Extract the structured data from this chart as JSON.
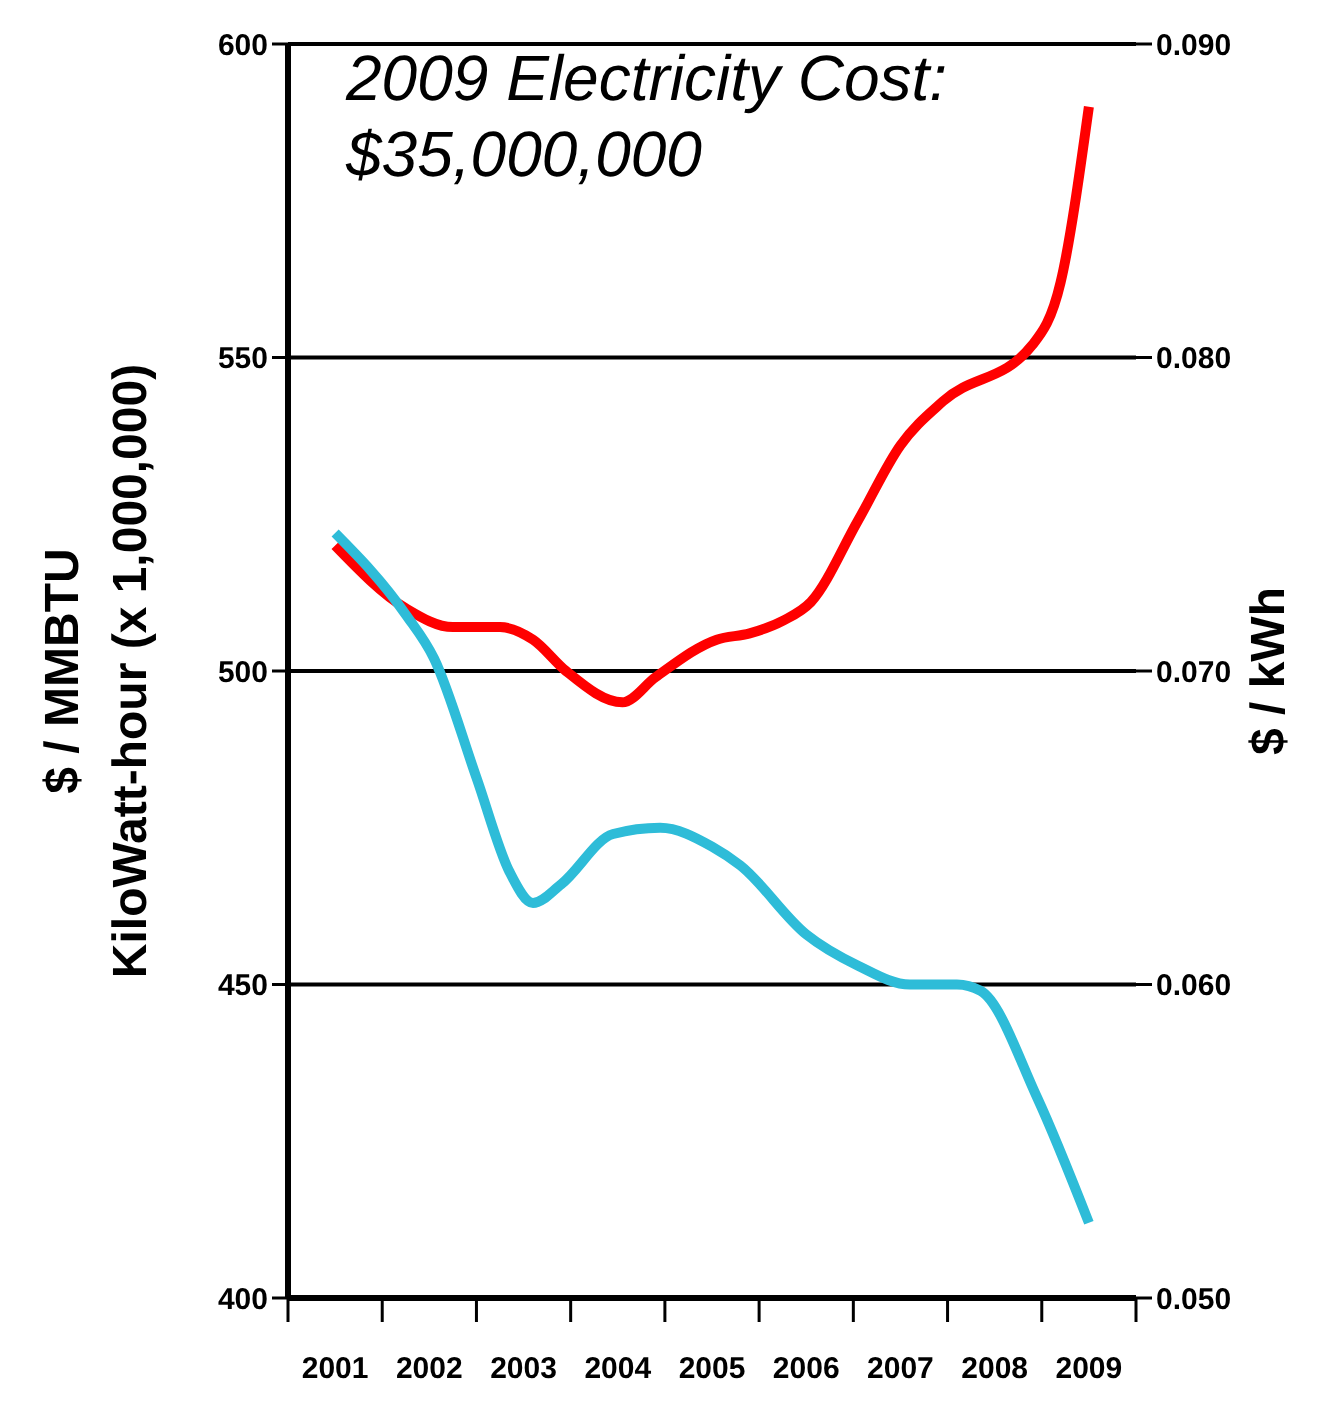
{
  "chart_data": {
    "type": "line",
    "ylabel": "$ / MMBTU\nKiloWatt-hour (x 1,000,000)",
    "y2label": "$ / kWh",
    "annotations": [
      "2009 Electricity Cost:\n$35,000,000"
    ],
    "xlim": [
      2000.5,
      2009.5
    ],
    "xticks": [
      {
        "value": 2000.5,
        "label": null
      },
      {
        "value": 2001,
        "label": "2001"
      },
      {
        "value": 2001.5,
        "label": null
      },
      {
        "value": 2002,
        "label": "2002"
      },
      {
        "value": 2002.5,
        "label": null
      },
      {
        "value": 2003,
        "label": "2003"
      },
      {
        "value": 2003.5,
        "label": null
      },
      {
        "value": 2004,
        "label": "2004"
      },
      {
        "value": 2004.5,
        "label": null
      },
      {
        "value": 2005,
        "label": "2005"
      },
      {
        "value": 2005.5,
        "label": null
      },
      {
        "value": 2006,
        "label": "2006"
      },
      {
        "value": 2006.5,
        "label": null
      },
      {
        "value": 2007,
        "label": "2007"
      },
      {
        "value": 2007.5,
        "label": null
      },
      {
        "value": 2008,
        "label": "2008"
      },
      {
        "value": 2008.5,
        "label": null
      },
      {
        "value": 2009,
        "label": "2009"
      },
      {
        "value": 2009.5,
        "label": null
      }
    ],
    "ylim": [
      400,
      600
    ],
    "yticks": [
      400,
      450,
      500,
      550,
      600
    ],
    "y2lim": [
      0.05,
      0.09
    ],
    "y2ticks": [
      {
        "value": 0.05,
        "label": "0.050"
      },
      {
        "value": 0.06,
        "label": "0.060"
      },
      {
        "value": 0.07,
        "label": "0.070"
      },
      {
        "value": 0.08,
        "label": "0.080"
      },
      {
        "value": 0.09,
        "label": "0.090"
      }
    ],
    "grid": "y",
    "marker": "none",
    "line_style": "solid",
    "series": [
      {
        "color": "#ff0000",
        "x": [
          2001,
          2001.75,
          2002.25,
          2002.75,
          2003.1,
          2003.45,
          2004.05,
          2004.4,
          2005.05,
          2005.4,
          2005.75,
          2006.05,
          2006.55,
          2007,
          2007.45,
          2008.4,
          2008.7,
          2009
        ],
        "values": [
          520,
          510,
          507,
          507,
          505,
          500,
          495,
          499,
          505,
          506,
          508,
          511,
          524,
          536,
          543,
          552,
          562,
          590
        ]
      },
      {
        "color": "#2ebcd8",
        "x": [
          2001,
          2001.75,
          2002.05,
          2002.5,
          2002.85,
          2003.1,
          2003.4,
          2003.95,
          2004.45,
          2005,
          2005.3,
          2006,
          2006.55,
          2007.1,
          2007.6,
          2007.85,
          2008.45,
          2009
        ],
        "values": [
          522,
          509,
          502,
          483,
          468,
          463,
          466,
          474,
          475,
          472,
          469,
          458,
          453,
          450,
          450,
          449,
          432,
          412
        ]
      }
    ]
  }
}
